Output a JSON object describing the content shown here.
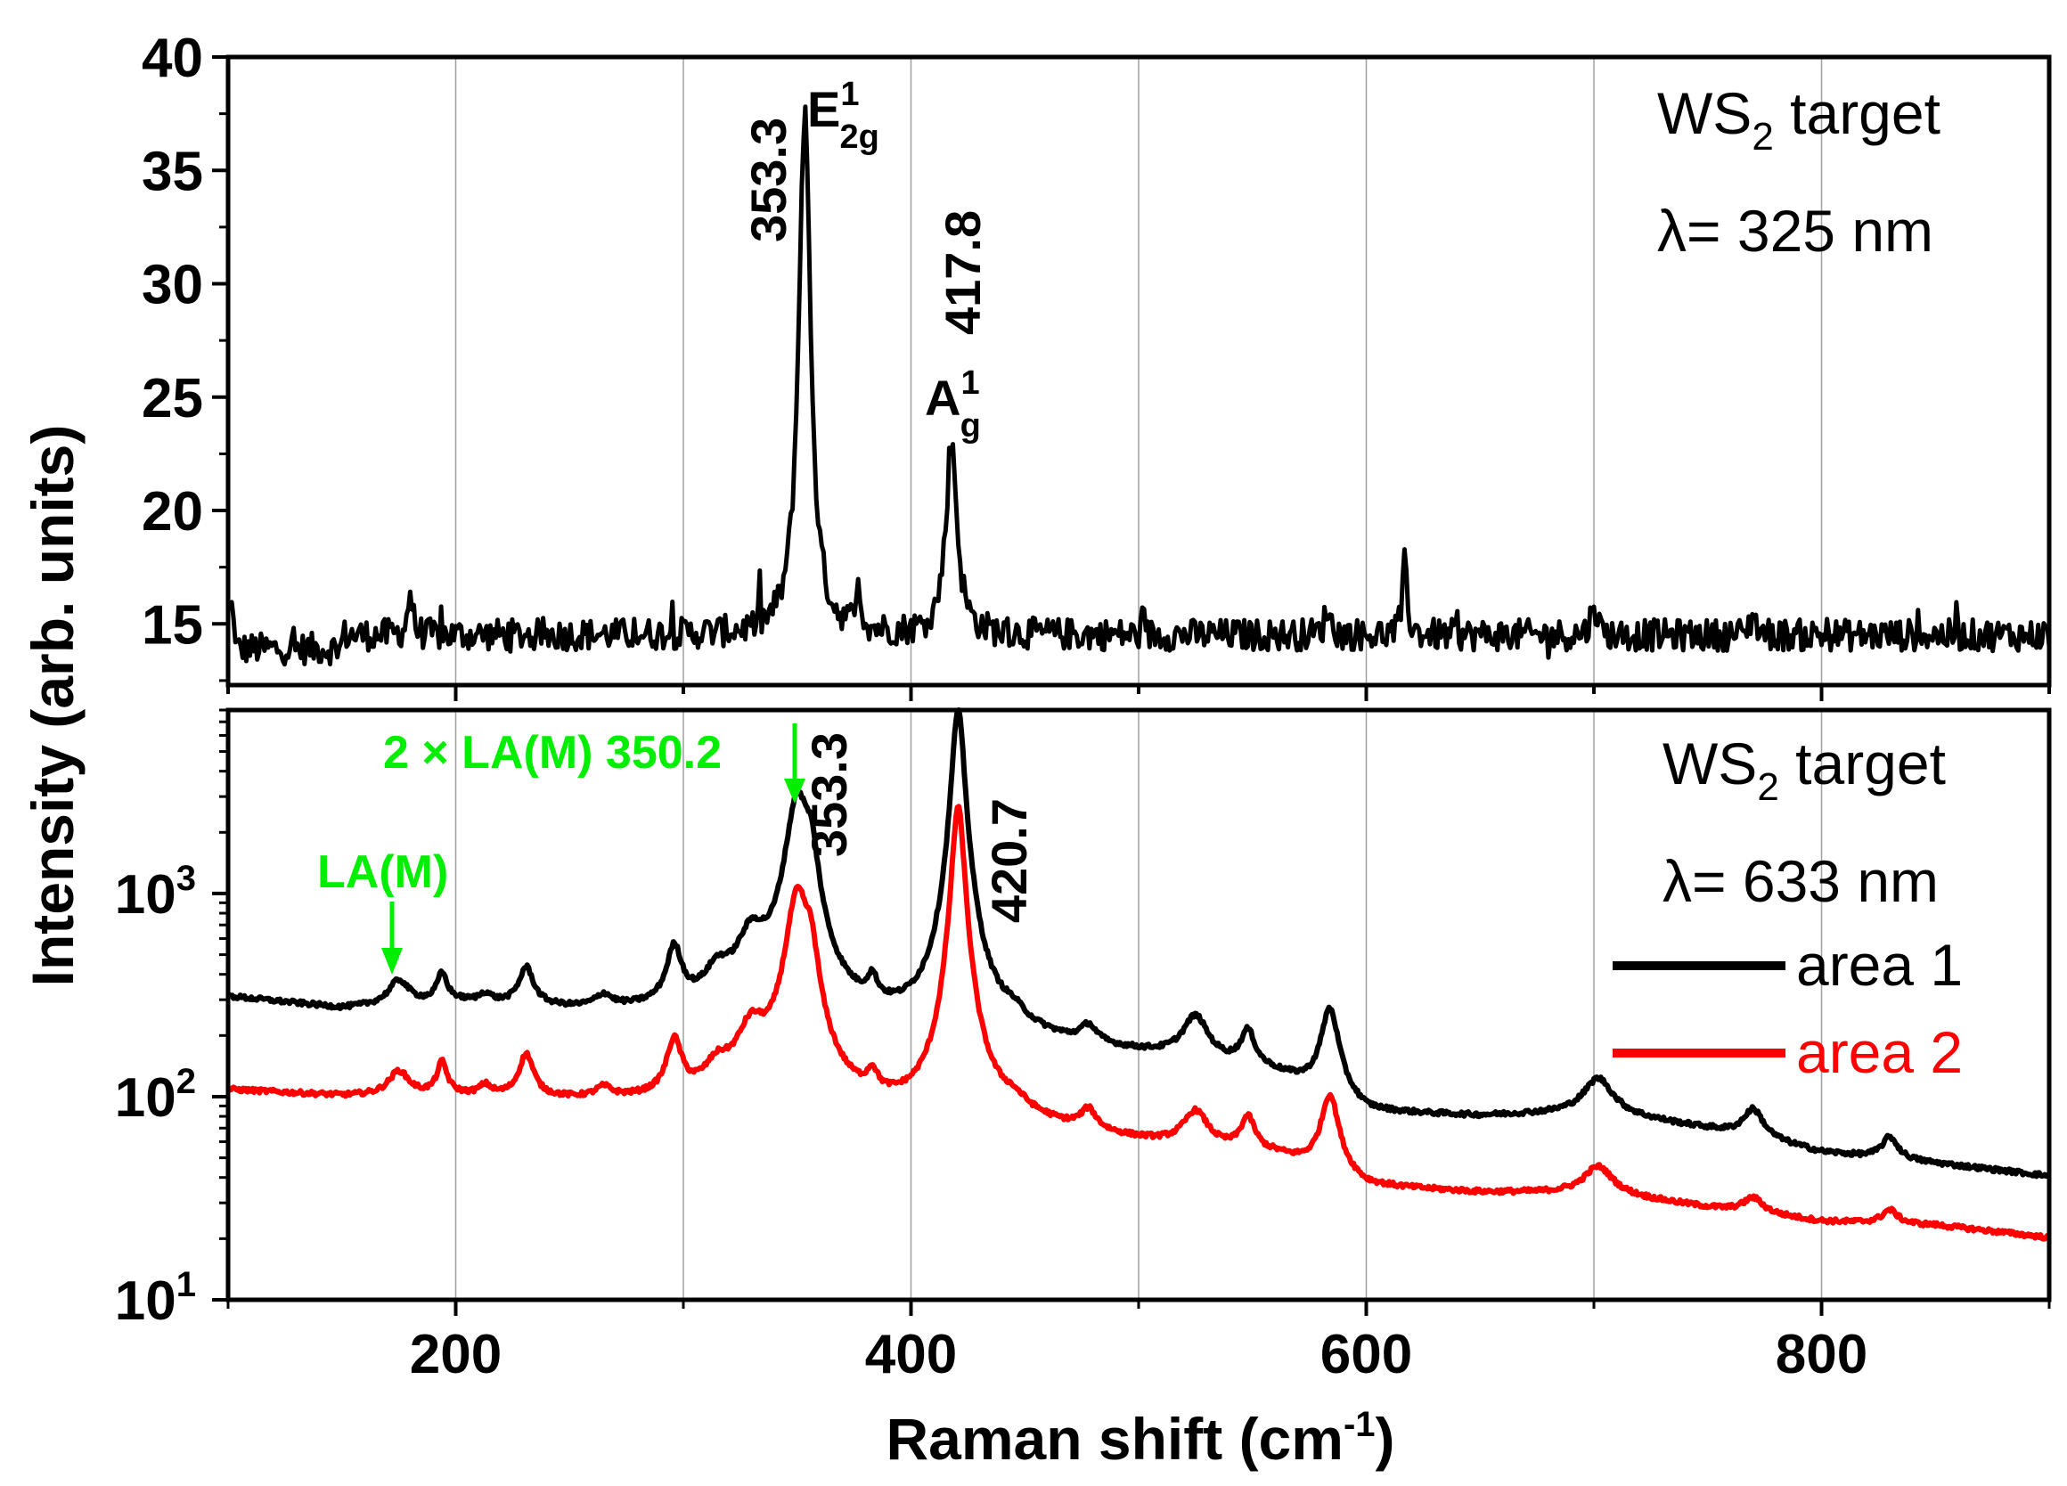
{
  "chart_data": [
    {
      "type": "line",
      "panel": "top",
      "scale": "linear",
      "xlim": [
        100,
        900
      ],
      "ylim": [
        12.3,
        40
      ],
      "x_gridlines": [
        200,
        300,
        400,
        500,
        600,
        700,
        800
      ],
      "yticks": [
        {
          "value": 15,
          "label": "15"
        },
        {
          "value": 20,
          "label": "20"
        },
        {
          "value": 25,
          "label": "25"
        },
        {
          "value": 30,
          "label": "30"
        },
        {
          "value": 35,
          "label": "35"
        },
        {
          "value": 40,
          "label": "40"
        }
      ],
      "annotations": {
        "sample_main": "WS",
        "sample_sub": "2",
        "sample_rest": " target",
        "wavelength": "λ= 325 nm"
      },
      "baseline": 14.5,
      "peaks": [
        {
          "x": 353.3,
          "amp": 23,
          "width": 3.2
        },
        {
          "x": 417.8,
          "amp": 8.5,
          "width": 3.0
        },
        {
          "x": 180,
          "amp": 2.0,
          "width": 1.2
        },
        {
          "x": 377,
          "amp": 2.0,
          "width": 1.2
        },
        {
          "x": 617,
          "amp": 3.2,
          "width": 1.2
        },
        {
          "x": 700,
          "amp": 1.5,
          "width": 1.5
        },
        {
          "x": 770,
          "amp": 1.0,
          "width": 1.5
        },
        {
          "x": 583,
          "amp": 1.2,
          "width": 1.5
        }
      ],
      "peak_labels": [
        {
          "x": 353.3,
          "value": "353.3",
          "mode": "E",
          "mode_sub": "2g",
          "mode_sup": "1"
        },
        {
          "x": 417.8,
          "value": "417.8",
          "mode": "A",
          "mode_sub": "g",
          "mode_sup": "1"
        }
      ],
      "series": [
        {
          "name": "325 nm",
          "color": "#000000"
        }
      ]
    },
    {
      "type": "line",
      "panel": "bottom",
      "scale": "log",
      "xlim": [
        100,
        900
      ],
      "ylim": [
        10,
        8000
      ],
      "x_gridlines": [
        200,
        300,
        400,
        500,
        600,
        700,
        800
      ],
      "xticks": [
        {
          "value": 200,
          "label": "200"
        },
        {
          "value": 400,
          "label": "400"
        },
        {
          "value": 600,
          "label": "600"
        },
        {
          "value": 800,
          "label": "800"
        }
      ],
      "yticks": [
        {
          "value": 10,
          "base": "10",
          "exp": "1"
        },
        {
          "value": 100,
          "base": "10",
          "exp": "2"
        },
        {
          "value": 1000,
          "base": "10",
          "exp": "3"
        }
      ],
      "annotations": {
        "sample_main": "WS",
        "sample_sub": "2",
        "sample_rest": " target",
        "wavelength": "λ= 633 nm",
        "la_label": "LA(M)",
        "two_la_label": "2 × LA(M) 350.2"
      },
      "peak_labels": [
        {
          "x": 353.3,
          "value": "353.3"
        },
        {
          "x": 420.7,
          "value": "420.7"
        }
      ],
      "series": [
        {
          "name": "area 1",
          "color": "#000000",
          "background": [
            [
              100,
              310
            ],
            [
              150,
              270
            ],
            [
              200,
              290
            ],
            [
              250,
              265
            ],
            [
              300,
              255
            ],
            [
              350,
              230
            ],
            [
              400,
              205
            ],
            [
              450,
              180
            ],
            [
              480,
              165
            ],
            [
              520,
              150
            ],
            [
              560,
              125
            ],
            [
              600,
              80
            ],
            [
              650,
              78
            ],
            [
              700,
              82
            ],
            [
              750,
              68
            ],
            [
              800,
              52
            ],
            [
              850,
              46
            ],
            [
              900,
              40
            ]
          ],
          "peaks": [
            {
              "x": 175,
              "amp": 90,
              "width": 5
            },
            {
              "x": 194,
              "amp": 110,
              "width": 2.5
            },
            {
              "x": 213,
              "amp": 30,
              "width": 3
            },
            {
              "x": 231,
              "amp": 150,
              "width": 3.5
            },
            {
              "x": 265,
              "amp": 40,
              "width": 4
            },
            {
              "x": 296,
              "amp": 260,
              "width": 3.5
            },
            {
              "x": 315,
              "amp": 120,
              "width": 6
            },
            {
              "x": 330,
              "amp": 320,
              "width": 7
            },
            {
              "x": 350.2,
              "amp": 2700,
              "width": 5
            },
            {
              "x": 356,
              "amp": 1000,
              "width": 3
            },
            {
              "x": 383,
              "amp": 90,
              "width": 2.5
            },
            {
              "x": 420.7,
              "amp": 7800,
              "width": 2.6
            },
            {
              "x": 445,
              "amp": 30,
              "width": 6
            },
            {
              "x": 478,
              "amp": 40,
              "width": 4
            },
            {
              "x": 525,
              "amp": 95,
              "width": 6
            },
            {
              "x": 548,
              "amp": 70,
              "width": 3.5
            },
            {
              "x": 584,
              "amp": 170,
              "width": 4
            },
            {
              "x": 702,
              "amp": 40,
              "width": 7
            },
            {
              "x": 770,
              "amp": 24,
              "width": 5
            },
            {
              "x": 830,
              "amp": 14,
              "width": 4
            }
          ]
        },
        {
          "name": "area 2",
          "color": "#ff0000",
          "background": [
            [
              100,
              108
            ],
            [
              150,
              100
            ],
            [
              200,
              100
            ],
            [
              250,
              95
            ],
            [
              300,
              92
            ],
            [
              350,
              85
            ],
            [
              400,
              75
            ],
            [
              450,
              70
            ],
            [
              480,
              62
            ],
            [
              520,
              55
            ],
            [
              560,
              50
            ],
            [
              600,
              35
            ],
            [
              650,
              33
            ],
            [
              700,
              33
            ],
            [
              750,
              28
            ],
            [
              800,
              24
            ],
            [
              850,
              23
            ],
            [
              900,
              20
            ]
          ],
          "peaks": [
            {
              "x": 175,
              "amp": 32,
              "width": 5
            },
            {
              "x": 194,
              "amp": 45,
              "width": 2.5
            },
            {
              "x": 213,
              "amp": 12,
              "width": 3
            },
            {
              "x": 231,
              "amp": 62,
              "width": 3.5
            },
            {
              "x": 265,
              "amp": 12,
              "width": 4
            },
            {
              "x": 296,
              "amp": 88,
              "width": 3.5
            },
            {
              "x": 315,
              "amp": 35,
              "width": 6
            },
            {
              "x": 330,
              "amp": 110,
              "width": 7
            },
            {
              "x": 350.2,
              "amp": 900,
              "width": 5
            },
            {
              "x": 356,
              "amp": 300,
              "width": 3
            },
            {
              "x": 383,
              "amp": 28,
              "width": 2.5
            },
            {
              "x": 420.7,
              "amp": 2600,
              "width": 2.6
            },
            {
              "x": 445,
              "amp": 10,
              "width": 6
            },
            {
              "x": 478,
              "amp": 18,
              "width": 4
            },
            {
              "x": 525,
              "amp": 28,
              "width": 6
            },
            {
              "x": 548,
              "amp": 25,
              "width": 3.5
            },
            {
              "x": 584,
              "amp": 60,
              "width": 4
            },
            {
              "x": 702,
              "amp": 12,
              "width": 7
            },
            {
              "x": 770,
              "amp": 5,
              "width": 5
            },
            {
              "x": 830,
              "amp": 4,
              "width": 4
            }
          ]
        }
      ]
    }
  ],
  "xlabel_main": "Raman shift (cm",
  "xlabel_sup": "-1",
  "xlabel_end": ")",
  "ylabel": "Intensity (arb. units)",
  "colors": {
    "accent_green": "#00ee00",
    "area1": "#000000",
    "area2": "#ff0000",
    "grid": "#a0a0a0"
  }
}
